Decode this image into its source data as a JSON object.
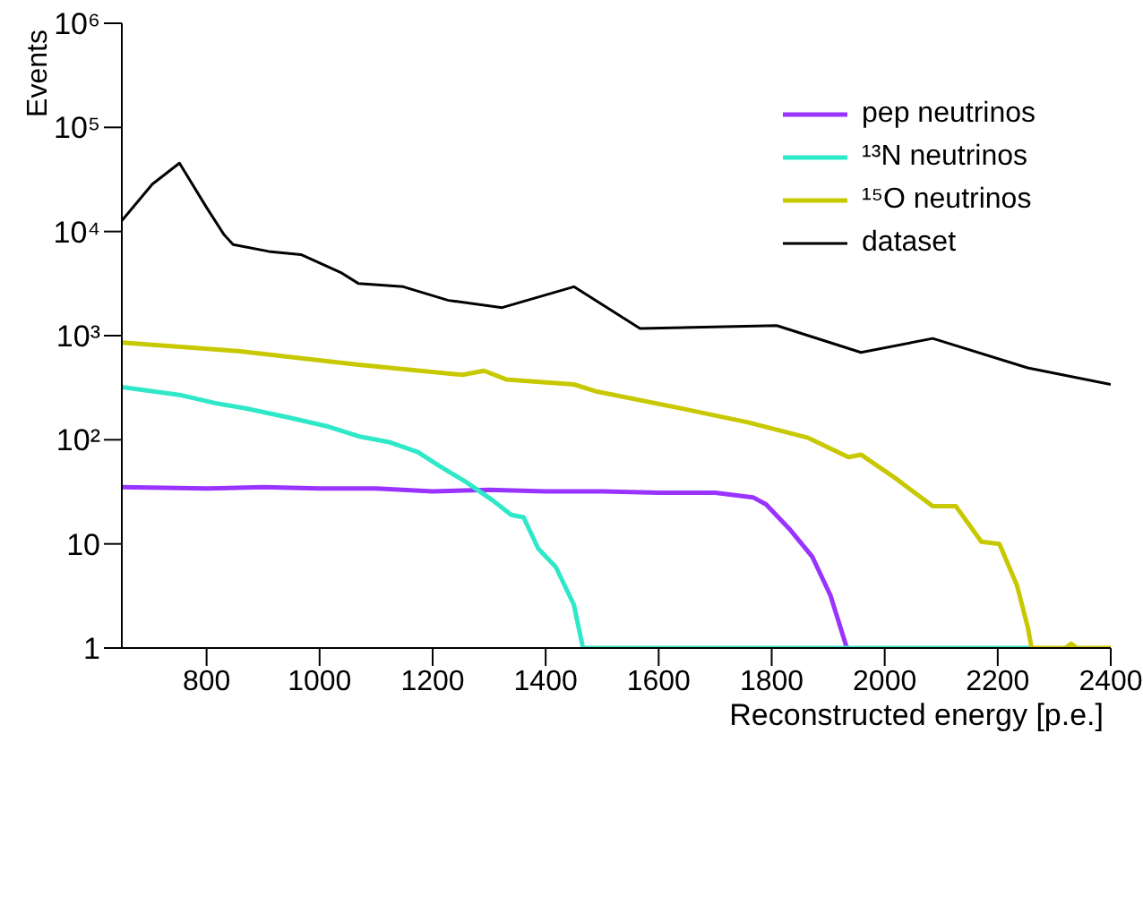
{
  "chart_data": {
    "type": "line",
    "xlabel": "Reconstructed energy [p.e.]",
    "ylabel": "Events",
    "log": "y",
    "grid": false,
    "legend": "top right",
    "marker": "none",
    "line_style": "solid",
    "xlim": [
      650,
      2400
    ],
    "xticks": [
      800,
      1000,
      1200,
      1400,
      1600,
      1800,
      2000,
      2200,
      2400
    ],
    "ylim": [
      1,
      1000000
    ],
    "yticks": [
      1,
      10,
      {
        "value": 100,
        "label": "10²"
      },
      {
        "value": 1000,
        "label": "10³"
      },
      {
        "value": 10000,
        "label": "10⁴"
      },
      {
        "value": 100000,
        "label": "10⁵"
      },
      {
        "value": 1000000,
        "label": "10⁶"
      }
    ],
    "series": [
      {
        "name": "pep neutrinos",
        "color": "#9933ff",
        "x": [
          650,
          800,
          900,
          1000,
          1100,
          1200,
          1300,
          1400,
          1500,
          1600,
          1700,
          1767,
          1790,
          1831,
          1872,
          1904,
          1933
        ],
        "values": [
          35,
          34,
          35,
          34,
          34,
          32,
          33,
          32,
          32,
          31,
          31,
          28,
          24,
          14,
          7.5,
          3.2,
          1
        ]
      },
      {
        "name": "¹³N neutrinos",
        "color": "#2ee8c8",
        "x": [
          650,
          752,
          815,
          869,
          942,
          1015,
          1069,
          1123,
          1174,
          1212,
          1260,
          1307,
          1339,
          1361,
          1387,
          1418,
          1450,
          1466,
          2260
        ],
        "values": [
          320,
          270,
          225,
          200,
          165,
          134,
          108,
          95,
          76,
          56,
          39,
          26,
          19,
          18,
          9,
          6,
          2.6,
          1,
          1
        ]
      },
      {
        "name": "¹⁵O neutrinos",
        "color": "#c8c800",
        "x": [
          650,
          856,
          1069,
          1253,
          1291,
          1330,
          1450,
          1491,
          1650,
          1758,
          1863,
          1936,
          1958,
          2021,
          2085,
          2126,
          2171,
          2203,
          2234,
          2253,
          2260,
          2320,
          2330,
          2340,
          2400
        ],
        "values": [
          860,
          710,
          525,
          420,
          460,
          380,
          340,
          290,
          195,
          147,
          105,
          68,
          72,
          42,
          23,
          23,
          10.5,
          10,
          4,
          1.6,
          1,
          1,
          1.1,
          1,
          1
        ]
      },
      {
        "name": "dataset",
        "color": "#000000",
        "x": [
          650,
          704,
          752,
          800,
          831,
          847,
          910,
          967,
          1037,
          1069,
          1148,
          1228,
          1323,
          1450,
          1567,
          1809,
          1958,
          2085,
          2253,
          2400
        ],
        "values": [
          12700,
          28500,
          45400,
          17000,
          9300,
          7500,
          6440,
          6000,
          4050,
          3160,
          2950,
          2180,
          1860,
          2950,
          1170,
          1250,
          690,
          940,
          490,
          340
        ]
      }
    ]
  }
}
